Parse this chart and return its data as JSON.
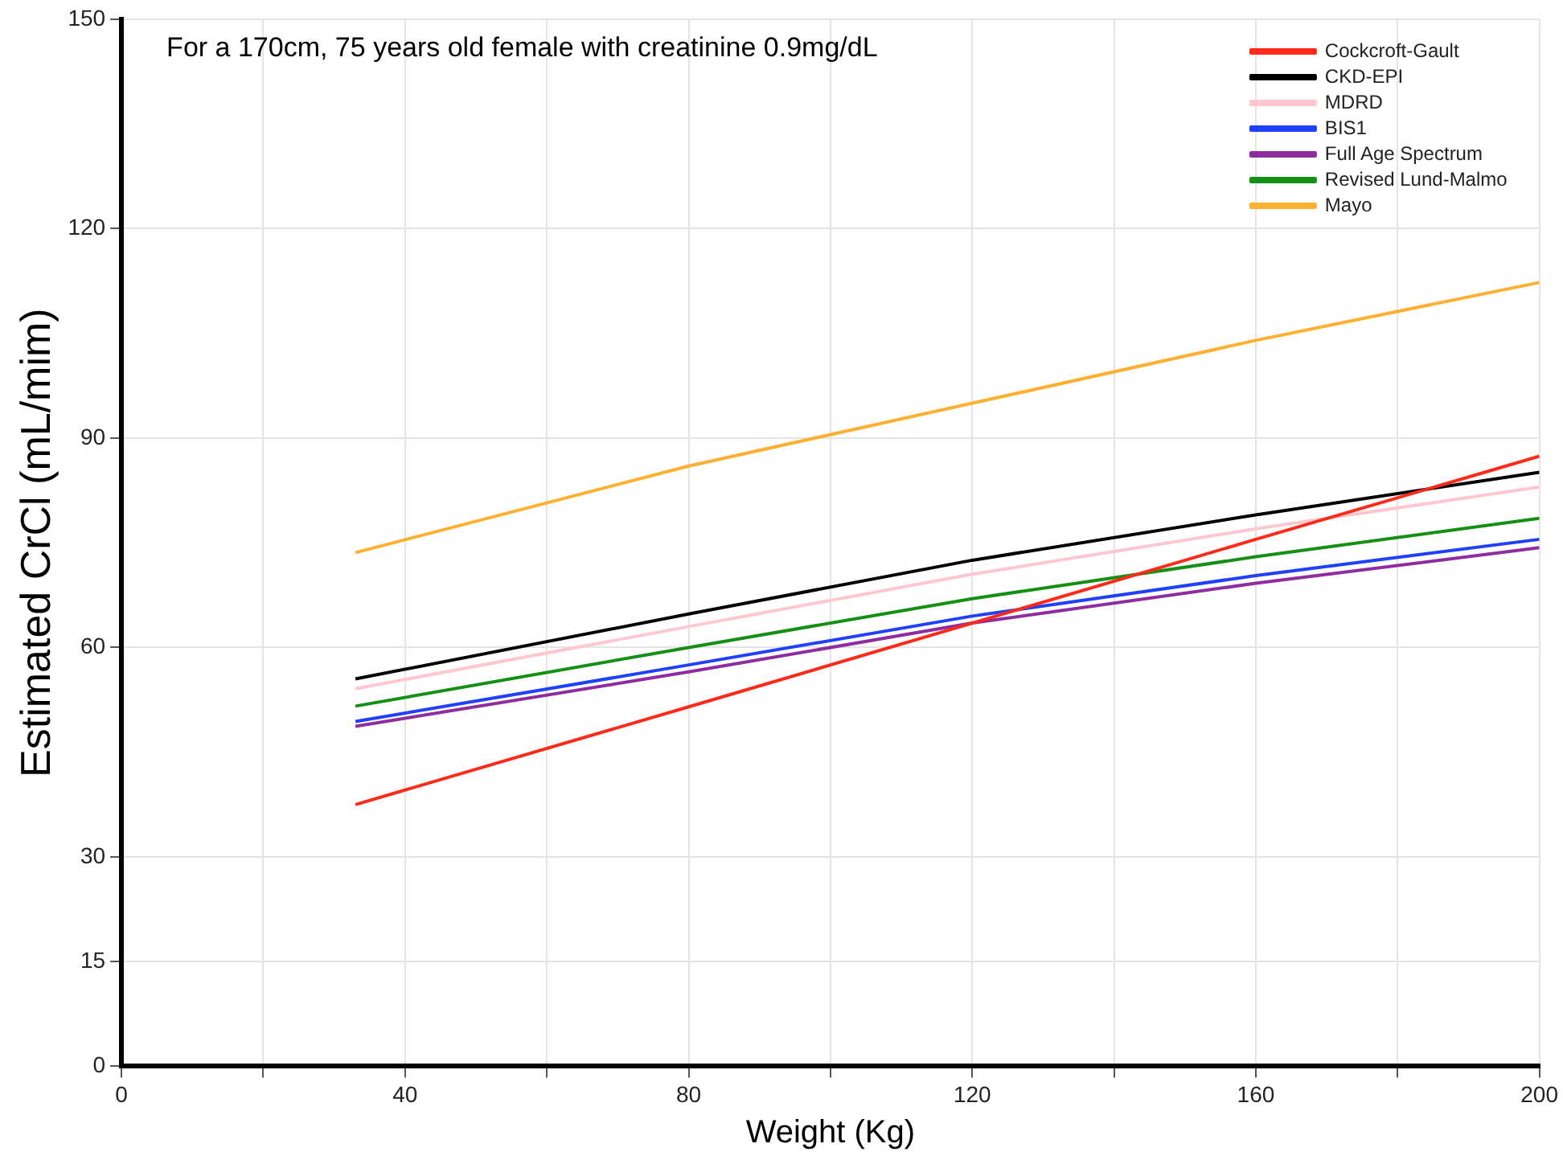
{
  "chart_data": {
    "type": "line",
    "xlabel": "Weight (Kg)",
    "ylabel": "Estimated CrCl (mL/mim)",
    "annotations": [
      "For a 170cm, 75 years old female with creatinine 0.9mg/dL"
    ],
    "x": [
      33,
      80,
      120,
      160,
      200
    ],
    "series": [
      {
        "name": "Cockcroft-Gault",
        "color": "#ff2a1a",
        "values": [
          37.5,
          51.5,
          63.5,
          75.5,
          87.4
        ]
      },
      {
        "name": "CKD-EPI",
        "color": "#000000",
        "values": [
          55.5,
          64.8,
          72.5,
          79,
          85.1
        ]
      },
      {
        "name": "MDRD",
        "color": "#ffc8d0",
        "values": [
          54.1,
          63,
          70.5,
          77,
          83
        ]
      },
      {
        "name": "BIS1",
        "color": "#2040ff",
        "values": [
          49.4,
          57.5,
          64.5,
          70.3,
          75.5
        ]
      },
      {
        "name": "Full Age Spectrum",
        "color": "#8e2ca0",
        "values": [
          48.7,
          56.5,
          63.5,
          69.2,
          74.3
        ]
      },
      {
        "name": "Revised Lund-Malmo",
        "color": "#149014",
        "values": [
          51.6,
          60,
          67,
          73,
          78.5
        ]
      },
      {
        "name": "Mayo",
        "color": "#ffb030",
        "values": [
          73.6,
          86,
          95,
          104,
          112.3
        ]
      }
    ],
    "xlim": [
      0,
      200
    ],
    "xticks": [
      0,
      {
        "value": 20,
        "label": null
      },
      40,
      {
        "value": 60,
        "label": null
      },
      80,
      {
        "value": 100,
        "label": null
      },
      120,
      {
        "value": 140,
        "label": null
      },
      160,
      {
        "value": 180,
        "label": null
      },
      200
    ],
    "ylim": [
      0,
      150
    ],
    "yticks": [
      0,
      15,
      30,
      60,
      90,
      120,
      150
    ],
    "grid": true,
    "legend": "top right",
    "marker": "none",
    "line_style": "solid"
  }
}
